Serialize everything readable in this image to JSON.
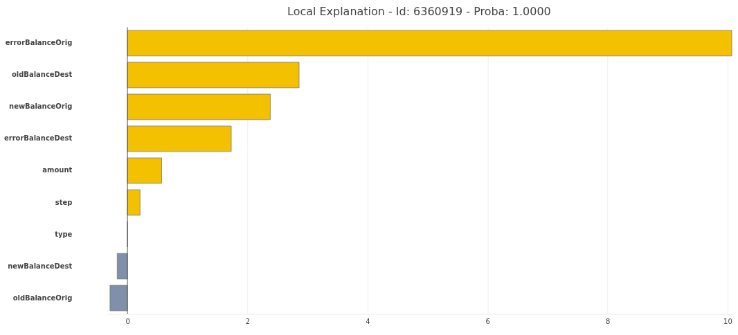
{
  "chart_data": {
    "type": "bar",
    "orientation": "horizontal",
    "title": "Local Explanation - Id: 6360919 - Proba: 1.0000",
    "categories": [
      "errorBalanceOrig",
      "oldBalanceDest",
      "newBalanceOrig",
      "errorBalanceDest",
      "amount",
      "step",
      "type",
      "newBalanceDest",
      "oldBalanceOrig"
    ],
    "values": [
      10.07,
      2.86,
      2.38,
      1.73,
      0.57,
      0.21,
      0.0,
      -0.17,
      -0.29
    ],
    "colors": [
      "#f4c100",
      "#f4c100",
      "#f4c100",
      "#f4c100",
      "#f4c100",
      "#f4c100",
      "#777777",
      "#8090ab",
      "#8090ab"
    ],
    "xlim": [
      -0.35,
      10.07
    ],
    "xticks": [
      0,
      2,
      4,
      6,
      8,
      10
    ],
    "grid": "x",
    "ref_lines": [
      {
        "axis": "x",
        "value": 0,
        "color": "#444444"
      }
    ]
  }
}
